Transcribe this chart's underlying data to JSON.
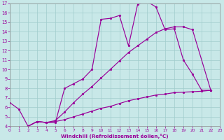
{
  "xlabel": "Windchill (Refroidissement éolien,°C)",
  "bg_color": "#c8e8e8",
  "grid_color": "#a0cccc",
  "line_color": "#990099",
  "xlim": [
    0,
    23
  ],
  "ylim": [
    4,
    17
  ],
  "xticks": [
    0,
    1,
    2,
    3,
    4,
    5,
    6,
    7,
    8,
    9,
    10,
    11,
    12,
    13,
    14,
    15,
    16,
    17,
    18,
    19,
    20,
    21,
    22,
    23
  ],
  "yticks": [
    4,
    5,
    6,
    7,
    8,
    9,
    10,
    11,
    12,
    13,
    14,
    15,
    16,
    17
  ],
  "line1_x": [
    0,
    1,
    2,
    3,
    4,
    5,
    6,
    7,
    8,
    9,
    10,
    11,
    12,
    13,
    14,
    15,
    16,
    17,
    18,
    19,
    20,
    21,
    22
  ],
  "line1_y": [
    6.5,
    5.8,
    4.0,
    4.5,
    4.4,
    4.4,
    8.0,
    8.5,
    9.0,
    10.0,
    15.3,
    15.4,
    15.7,
    12.5,
    16.9,
    17.2,
    16.6,
    14.2,
    14.3,
    11.0,
    9.5,
    7.8,
    7.8
  ],
  "line2_x": [
    2,
    3,
    4,
    5,
    6,
    7,
    8,
    9,
    10,
    11,
    12,
    13,
    14,
    15,
    16,
    17,
    18,
    19,
    20,
    22
  ],
  "line2_y": [
    4.0,
    4.5,
    4.4,
    4.6,
    5.5,
    6.5,
    7.4,
    8.2,
    9.1,
    10.0,
    10.9,
    11.8,
    12.5,
    13.2,
    13.9,
    14.3,
    14.5,
    14.5,
    14.2,
    7.8
  ],
  "line3_x": [
    2,
    3,
    4,
    5,
    6,
    7,
    8,
    9,
    10,
    11,
    12,
    13,
    14,
    15,
    16,
    17,
    18,
    19,
    20,
    21,
    22
  ],
  "line3_y": [
    4.0,
    4.5,
    4.4,
    4.5,
    4.7,
    5.0,
    5.3,
    5.6,
    5.9,
    6.1,
    6.4,
    6.7,
    6.9,
    7.1,
    7.3,
    7.4,
    7.55,
    7.6,
    7.65,
    7.7,
    7.8
  ]
}
